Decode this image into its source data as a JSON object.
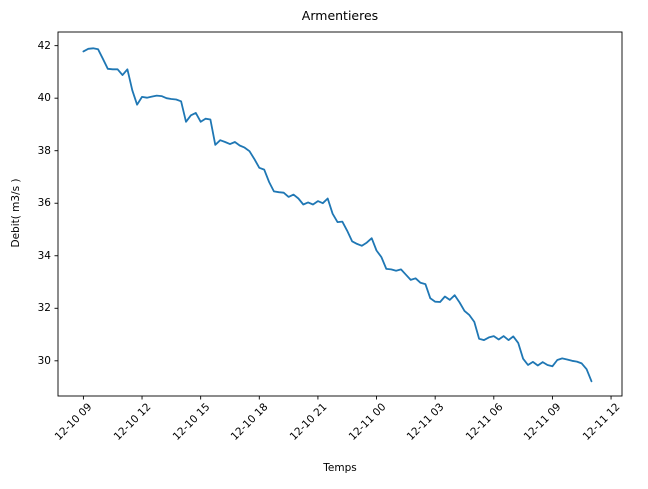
{
  "figure": {
    "title": "Armentieres",
    "xlabel": "Temps",
    "ylabel": "Debit( m3/s )"
  },
  "chart_data": {
    "type": "line",
    "title": "Armentieres",
    "xlabel": "Temps",
    "ylabel": "Debit( m3/s )",
    "legend_position": "none",
    "grid": false,
    "line_color": "#1f77b4",
    "line_width": 1.8,
    "x_start": "12-10 09:00",
    "x_step_minutes": 15,
    "x_ticks": [
      {
        "hour": 0,
        "label": "12-10 09"
      },
      {
        "hour": 3,
        "label": "12-10 12"
      },
      {
        "hour": 6,
        "label": "12-10 15"
      },
      {
        "hour": 9,
        "label": "12-10 18"
      },
      {
        "hour": 12,
        "label": "12-10 21"
      },
      {
        "hour": 15,
        "label": "12-11 00"
      },
      {
        "hour": 18,
        "label": "12-11 03"
      },
      {
        "hour": 21,
        "label": "12-11 06"
      },
      {
        "hour": 24,
        "label": "12-11 09"
      },
      {
        "hour": 27,
        "label": "12-11 12"
      }
    ],
    "y_ticks": [
      30,
      32,
      34,
      36,
      38,
      40,
      42
    ],
    "xlim_hours": [
      -1.3,
      27.56
    ],
    "ylim": [
      28.66,
      42.52
    ],
    "values": [
      41.78,
      41.88,
      41.9,
      41.86,
      41.5,
      41.12,
      41.1,
      41.1,
      40.88,
      41.1,
      40.3,
      39.75,
      40.05,
      40.02,
      40.06,
      40.1,
      40.08,
      40.0,
      39.97,
      39.95,
      39.88,
      39.1,
      39.35,
      39.44,
      39.1,
      39.22,
      39.19,
      38.22,
      38.4,
      38.33,
      38.25,
      38.33,
      38.2,
      38.12,
      37.98,
      37.68,
      37.35,
      37.28,
      36.81,
      36.45,
      36.42,
      36.4,
      36.24,
      36.33,
      36.18,
      35.95,
      36.03,
      35.95,
      36.08,
      36.0,
      36.18,
      35.6,
      35.28,
      35.3,
      34.95,
      34.55,
      34.45,
      34.38,
      34.5,
      34.67,
      34.2,
      33.95,
      33.5,
      33.48,
      33.43,
      33.48,
      33.28,
      33.08,
      33.14,
      32.97,
      32.92,
      32.38,
      32.25,
      32.24,
      32.45,
      32.32,
      32.5,
      32.22,
      31.9,
      31.74,
      31.48,
      30.84,
      30.79,
      30.89,
      30.94,
      30.81,
      30.94,
      30.79,
      30.93,
      30.68,
      30.08,
      29.84,
      29.96,
      29.82,
      29.95,
      29.84,
      29.79,
      30.03,
      30.09,
      30.05,
      30.0,
      29.97,
      29.9,
      29.68,
      29.22
    ]
  }
}
